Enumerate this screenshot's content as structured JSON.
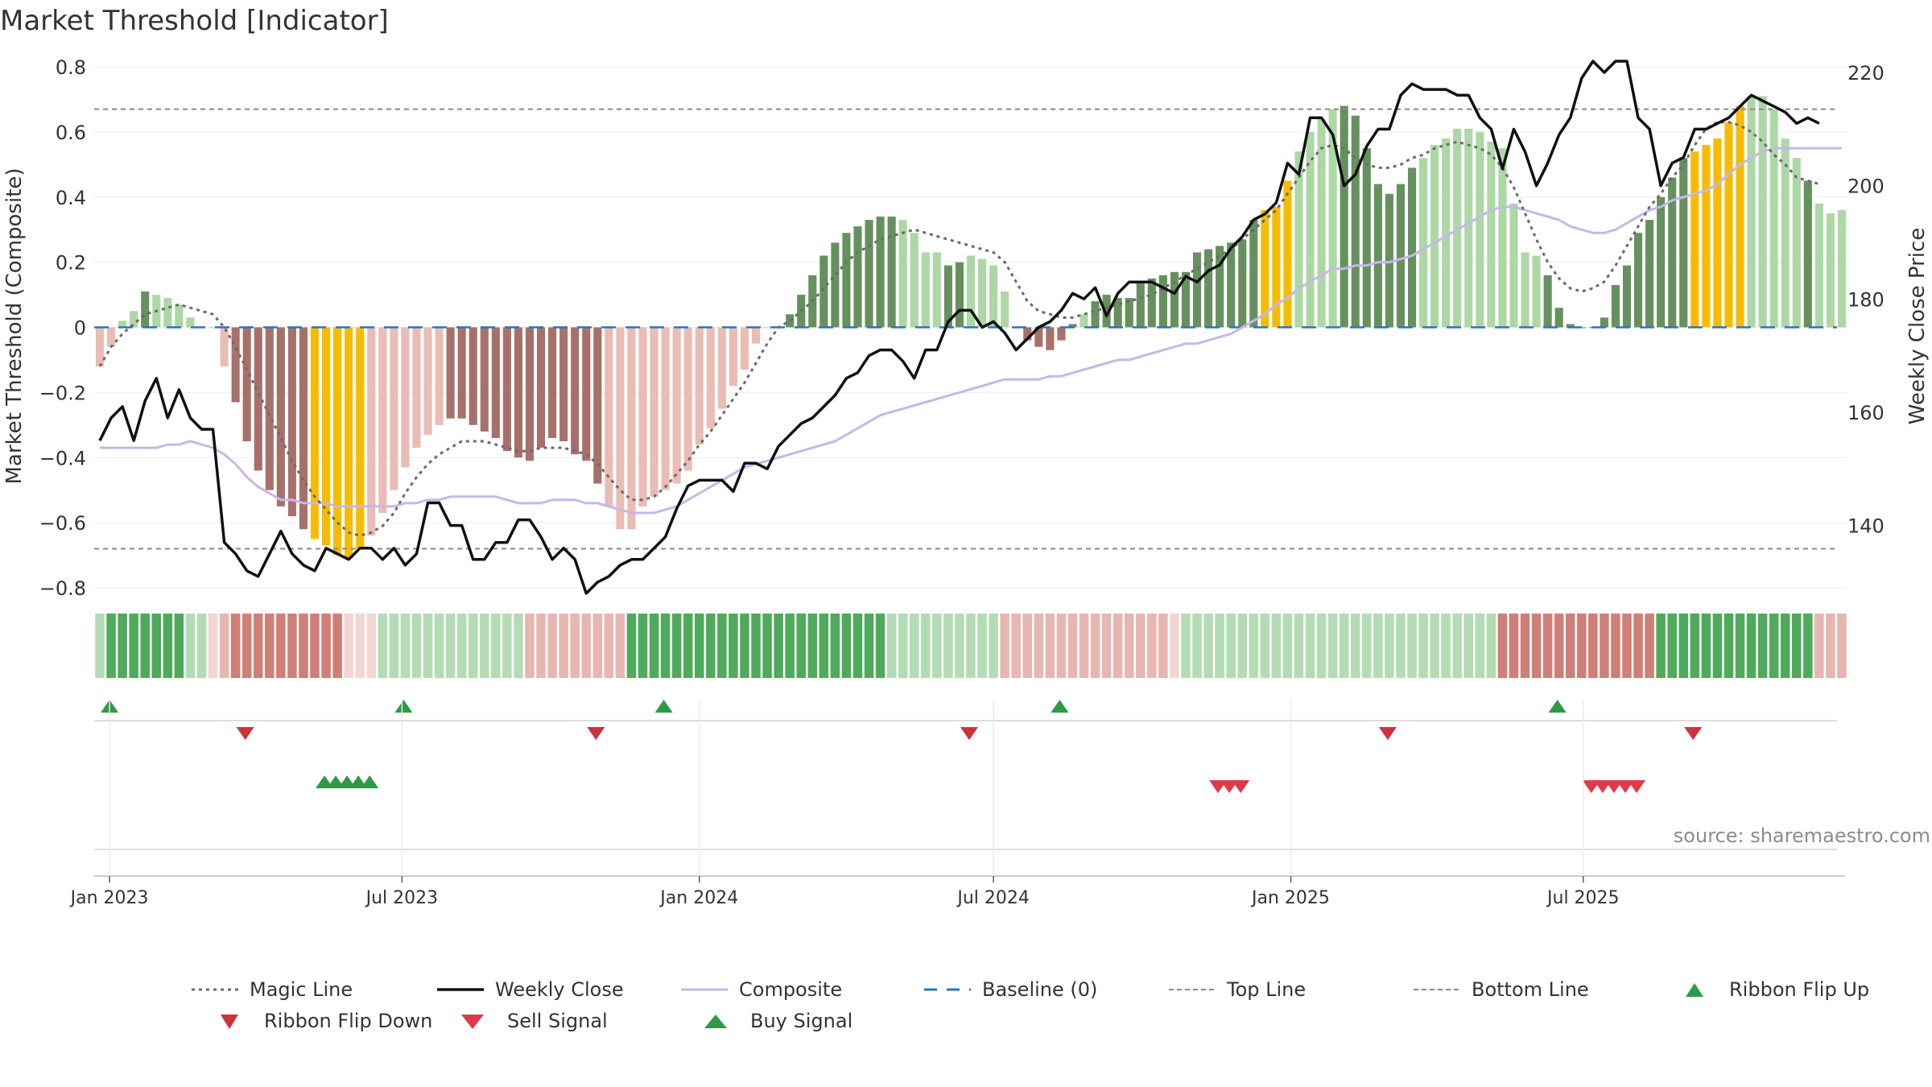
{
  "chart_data": {
    "type": "bar",
    "title": "Market Threshold [Indicator]",
    "ylabel": "Market Threshold (Composite)",
    "y2label": "Weekly Close Price",
    "source": "source: sharemaestro.com",
    "ylim": [
      -0.8,
      0.8
    ],
    "y2lim": [
      129,
      221
    ],
    "yticks": [
      0.8,
      0.6,
      0.4,
      0.2,
      0,
      -0.2,
      -0.4,
      -0.6,
      -0.8
    ],
    "ytick_labels": [
      "0.8",
      "0.6",
      "0.4",
      "0.2",
      "0",
      "−0.2",
      "−0.4",
      "−0.6",
      "−0.8"
    ],
    "y2ticks": [
      220,
      200,
      180,
      160,
      140
    ],
    "x_start": "2022-12-26",
    "xticks": [
      {
        "date": "2023-01-01",
        "label": "Jan 2023"
      },
      {
        "date": "2023-07-01",
        "label": "Jul 2023"
      },
      {
        "date": "2024-01-01",
        "label": "Jan 2024"
      },
      {
        "date": "2024-07-01",
        "label": "Jul 2024"
      },
      {
        "date": "2025-01-01",
        "label": "Jan 2025"
      },
      {
        "date": "2025-07-01",
        "label": "Jul 2025"
      }
    ],
    "top_line": 0.67,
    "bottom_line": -0.68,
    "baseline": 0,
    "grid": true,
    "legend_position": "bottom",
    "colors": {
      "bar_pos_dark": "#66915f",
      "bar_pos_light": "#add8a6",
      "bar_neg_dark": "#a7716b",
      "bar_neg_light": "#e9bcb5",
      "bar_extreme": "#f6bc04",
      "magic_line": "#6b6b6b",
      "weekly_close": "#111111",
      "composite": "#c5b8e8",
      "baseline": "#2b77b8",
      "top_line": "#8a8a8a",
      "bottom_line": "#8a8a8a",
      "up_marker": "#2e9a47",
      "down_marker": "#d0303b",
      "sell_marker": "#e0394a",
      "buy_marker": "#2e9a47"
    },
    "series": [
      {
        "name": "Composite",
        "kind": "bar",
        "values": [
          -0.12,
          -0.06,
          0.02,
          0.05,
          0.11,
          0.1,
          0.09,
          0.07,
          0.03,
          0,
          0,
          -0.12,
          -0.23,
          -0.35,
          -0.44,
          -0.5,
          -0.55,
          -0.58,
          -0.62,
          -0.65,
          -0.67,
          -0.7,
          -0.71,
          -0.68,
          -0.64,
          -0.57,
          -0.5,
          -0.43,
          -0.37,
          -0.33,
          -0.3,
          -0.28,
          -0.28,
          -0.3,
          -0.32,
          -0.34,
          -0.38,
          -0.4,
          -0.41,
          -0.37,
          -0.34,
          -0.35,
          -0.39,
          -0.41,
          -0.48,
          -0.55,
          -0.62,
          -0.62,
          -0.55,
          -0.52,
          -0.5,
          -0.48,
          -0.44,
          -0.36,
          -0.31,
          -0.25,
          -0.18,
          -0.13,
          -0.05,
          0,
          0,
          0.04,
          0.1,
          0.16,
          0.22,
          0.26,
          0.29,
          0.31,
          0.33,
          0.34,
          0.34,
          0.33,
          0.29,
          0.23,
          0.23,
          0.19,
          0.2,
          0.22,
          0.21,
          0.19,
          0.11,
          0,
          -0.04,
          -0.06,
          -0.07,
          -0.04,
          0.01,
          0.04,
          0.08,
          0.1,
          0.09,
          0.09,
          0.14,
          0.15,
          0.16,
          0.17,
          0.17,
          0.23,
          0.24,
          0.25,
          0.26,
          0.27,
          0.33,
          0.36,
          0.37,
          0.45,
          0.54,
          0.6,
          0.64,
          0.67,
          0.68,
          0.65,
          0.55,
          0.44,
          0.41,
          0.44,
          0.49,
          0.52,
          0.56,
          0.58,
          0.61,
          0.61,
          0.6,
          0.57,
          0.55,
          0.38,
          0.23,
          0.22,
          0.16,
          0.06,
          0.01,
          0,
          0,
          0.03,
          0.13,
          0.19,
          0.29,
          0.33,
          0.4,
          0.46,
          0.52,
          0.54,
          0.56,
          0.58,
          0.63,
          0.68,
          0.71,
          0.71,
          0.67,
          0.58,
          0.52,
          0.45,
          0.38,
          0.35,
          0.36
        ],
        "color_codes": "LLLLDLLLLLLLDDDDDDDYYYYYLLLLLLLDDDDDDDDDDDDDDLLLLLLLLLLLLLLLLDDDDDDDDDDLLLLDDLLLLDDDDDDLDDDDDDDDDDDDDDDYYYLLLLDDDDDDDLLLLLLLLLLLDDDDDDDDDDDDDYYYYYLLLLLD"
      },
      {
        "name": "Magic Line",
        "kind": "line",
        "values": [
          -0.12,
          -0.06,
          -0.02,
          0.01,
          0.04,
          0.05,
          0.06,
          0.07,
          0.06,
          0.05,
          0.04,
          0,
          -0.06,
          -0.13,
          -0.2,
          -0.27,
          -0.34,
          -0.41,
          -0.47,
          -0.52,
          -0.56,
          -0.6,
          -0.63,
          -0.64,
          -0.63,
          -0.61,
          -0.57,
          -0.51,
          -0.46,
          -0.42,
          -0.39,
          -0.37,
          -0.35,
          -0.35,
          -0.35,
          -0.36,
          -0.37,
          -0.38,
          -0.38,
          -0.37,
          -0.37,
          -0.37,
          -0.38,
          -0.39,
          -0.42,
          -0.46,
          -0.5,
          -0.53,
          -0.53,
          -0.52,
          -0.49,
          -0.45,
          -0.41,
          -0.36,
          -0.32,
          -0.27,
          -0.22,
          -0.17,
          -0.11,
          -0.05,
          0,
          0.02,
          0.05,
          0.08,
          0.12,
          0.16,
          0.2,
          0.23,
          0.25,
          0.27,
          0.28,
          0.29,
          0.3,
          0.29,
          0.28,
          0.27,
          0.26,
          0.25,
          0.24,
          0.23,
          0.2,
          0.14,
          0.08,
          0.05,
          0.04,
          0.03,
          0.03,
          0.04,
          0.05,
          0.06,
          0.07,
          0.08,
          0.09,
          0.1,
          0.12,
          0.14,
          0.16,
          0.18,
          0.2,
          0.22,
          0.24,
          0.27,
          0.3,
          0.33,
          0.36,
          0.41,
          0.46,
          0.51,
          0.55,
          0.56,
          0.55,
          0.52,
          0.5,
          0.49,
          0.49,
          0.5,
          0.52,
          0.53,
          0.55,
          0.56,
          0.57,
          0.56,
          0.55,
          0.53,
          0.49,
          0.43,
          0.35,
          0.27,
          0.2,
          0.15,
          0.12,
          0.11,
          0.12,
          0.14,
          0.19,
          0.25,
          0.31,
          0.37,
          0.41,
          0.46,
          0.5,
          0.56,
          0.61,
          0.63,
          0.63,
          0.62,
          0.6,
          0.57,
          0.53,
          0.5,
          0.46,
          0.45,
          0.44
        ]
      },
      {
        "name": "Weekly Close",
        "kind": "line",
        "axis": "y2",
        "values": [
          155,
          159,
          161,
          155,
          162,
          166,
          159,
          164,
          159,
          157,
          157,
          137,
          135,
          132,
          131,
          135,
          139,
          135,
          133,
          132,
          136,
          135,
          134,
          136,
          136,
          134,
          136,
          133,
          135,
          144,
          144,
          140,
          140,
          134,
          134,
          137,
          137,
          141,
          141,
          138,
          134,
          136,
          134,
          128,
          130,
          131,
          133,
          134,
          134,
          136,
          138,
          143,
          147,
          148,
          148,
          148,
          146,
          151,
          151,
          150,
          154,
          156,
          158,
          159,
          161,
          163,
          166,
          167,
          170,
          171,
          171,
          169,
          166,
          171,
          171,
          176,
          178,
          178,
          175,
          176,
          174,
          171,
          173,
          175,
          176,
          178,
          181,
          180,
          182,
          177,
          181,
          183,
          183,
          183,
          182,
          181,
          184,
          183,
          185,
          186,
          189,
          191,
          194,
          195,
          197,
          204,
          202,
          212,
          212,
          209,
          200,
          202,
          207,
          210,
          210,
          216,
          218,
          217,
          217,
          217,
          216,
          216,
          212,
          210,
          203,
          210,
          206,
          200,
          204,
          209,
          212,
          219,
          222,
          220,
          222,
          222,
          212,
          210,
          200,
          204,
          205,
          210,
          210,
          211,
          212,
          214,
          216,
          215,
          214,
          213,
          211,
          212,
          211
        ]
      },
      {
        "name": "Composite",
        "kind": "line",
        "values": [
          -0.37,
          -0.37,
          -0.37,
          -0.37,
          -0.37,
          -0.37,
          -0.36,
          -0.36,
          -0.35,
          -0.36,
          -0.37,
          -0.39,
          -0.42,
          -0.46,
          -0.49,
          -0.51,
          -0.53,
          -0.53,
          -0.54,
          -0.54,
          -0.54,
          -0.55,
          -0.55,
          -0.55,
          -0.55,
          -0.55,
          -0.55,
          -0.54,
          -0.54,
          -0.53,
          -0.53,
          -0.52,
          -0.52,
          -0.52,
          -0.52,
          -0.52,
          -0.53,
          -0.54,
          -0.54,
          -0.54,
          -0.53,
          -0.53,
          -0.53,
          -0.54,
          -0.54,
          -0.55,
          -0.56,
          -0.57,
          -0.57,
          -0.57,
          -0.56,
          -0.55,
          -0.53,
          -0.51,
          -0.49,
          -0.47,
          -0.45,
          -0.43,
          -0.42,
          -0.41,
          -0.4,
          -0.39,
          -0.38,
          -0.37,
          -0.36,
          -0.35,
          -0.33,
          -0.31,
          -0.29,
          -0.27,
          -0.26,
          -0.25,
          -0.24,
          -0.23,
          -0.22,
          -0.21,
          -0.2,
          -0.19,
          -0.18,
          -0.17,
          -0.16,
          -0.16,
          -0.16,
          -0.16,
          -0.15,
          -0.15,
          -0.14,
          -0.13,
          -0.12,
          -0.11,
          -0.1,
          -0.1,
          -0.09,
          -0.08,
          -0.07,
          -0.06,
          -0.05,
          -0.05,
          -0.04,
          -0.03,
          -0.02,
          0,
          0.02,
          0.04,
          0.07,
          0.09,
          0.12,
          0.14,
          0.16,
          0.18,
          0.18,
          0.19,
          0.19,
          0.2,
          0.2,
          0.21,
          0.22,
          0.24,
          0.26,
          0.28,
          0.3,
          0.32,
          0.34,
          0.36,
          0.37,
          0.37,
          0.36,
          0.35,
          0.34,
          0.33,
          0.31,
          0.3,
          0.29,
          0.29,
          0.3,
          0.32,
          0.34,
          0.36,
          0.37,
          0.39,
          0.4,
          0.41,
          0.42,
          0.44,
          0.47,
          0.5,
          0.52,
          0.54,
          0.55,
          0.55,
          0.55,
          0.55,
          0.55,
          0.55,
          0.55
        ]
      }
    ],
    "ribbon_codes": "LGGGGGGGLLKPRRRRRRRRRRKKKLLLLLLLLLLLLLPPPPPPPPPGGGGGGGGGGGGGGGGGGGGGGGLLLLLLLLLLPPPPPPPPPPPPPPPKLLLLLLLLLLLLLLLLLLLLLLLLLLLLRRRRRRRRRRRRRRGGGGGGGGGGGGGGPPPP",
    "ribbon_flip_up": [
      "2023-01-01",
      "2023-07-02",
      "2023-12-10",
      "2024-08-11",
      "2025-06-15"
    ],
    "ribbon_flip_down": [
      "2023-03-26",
      "2023-10-29",
      "2024-06-16",
      "2025-03-02",
      "2025-09-07"
    ],
    "buy_signals": [
      "2023-05-14",
      "2023-05-21",
      "2023-05-28",
      "2023-06-04",
      "2023-06-11"
    ],
    "sell_signals": [
      "2024-11-17",
      "2024-11-24",
      "2024-12-01",
      "2025-07-06",
      "2025-07-13",
      "2025-07-20",
      "2025-07-27",
      "2025-08-03"
    ],
    "legend": [
      {
        "label": "Magic Line",
        "style": "dotted"
      },
      {
        "label": "Weekly Close",
        "style": "solid"
      },
      {
        "label": "Composite",
        "style": "solid-light"
      },
      {
        "label": "Baseline (0)",
        "style": "dashed"
      },
      {
        "label": "Top Line",
        "style": "dashed-thin"
      },
      {
        "label": "Bottom Line",
        "style": "dashed-thin"
      },
      {
        "label": "Ribbon Flip Up",
        "style": "triangle-up"
      },
      {
        "label": "Ribbon Flip Down",
        "style": "triangle-down"
      },
      {
        "label": "Sell Signal",
        "style": "triangle-down"
      },
      {
        "label": "Buy Signal",
        "style": "triangle-up"
      }
    ]
  }
}
